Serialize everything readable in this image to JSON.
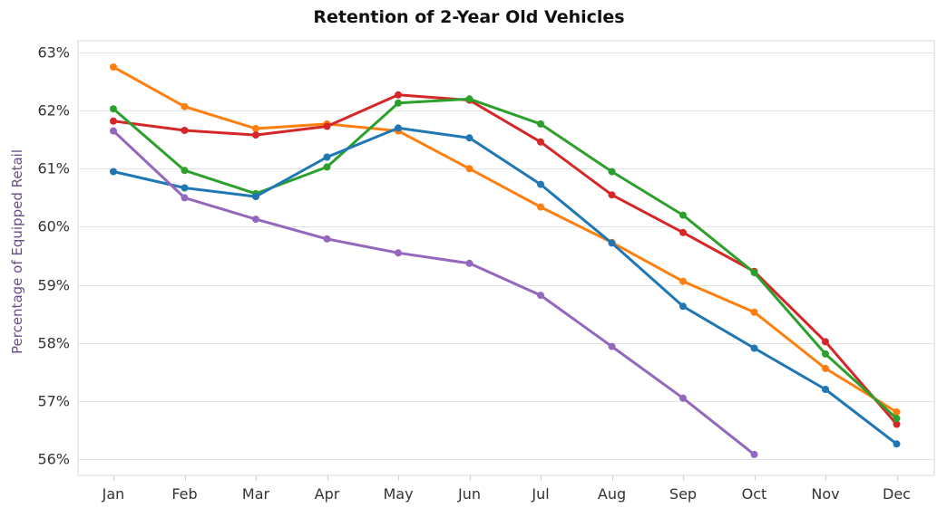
{
  "chart_data": {
    "type": "line",
    "title": "Retention of 2-Year Old Vehicles",
    "xlabel": "",
    "ylabel": "Percentage of Equipped Retail",
    "categories": [
      "Jan",
      "Feb",
      "Mar",
      "Apr",
      "May",
      "Jun",
      "Jul",
      "Aug",
      "Sep",
      "Oct",
      "Nov",
      "Dec"
    ],
    "ylim": [
      55.8,
      63.2
    ],
    "yticks": [
      56,
      57,
      58,
      59,
      60,
      61,
      62,
      63
    ],
    "ytick_labels": [
      "56%",
      "57%",
      "58%",
      "59%",
      "60%",
      "61%",
      "62%",
      "63%"
    ],
    "grid": true,
    "legend": "none",
    "series": [
      {
        "color": "#ff7f0e",
        "values": [
          62.75,
          62.07,
          61.69,
          61.77,
          61.65,
          61.0,
          60.34,
          59.73,
          59.06,
          58.53,
          57.56,
          56.81
        ]
      },
      {
        "color": "#d62728",
        "values": [
          61.82,
          61.66,
          61.58,
          61.73,
          62.27,
          62.18,
          61.46,
          60.55,
          59.9,
          59.23,
          58.02,
          56.6
        ]
      },
      {
        "color": "#2ca02c",
        "values": [
          62.03,
          60.97,
          60.57,
          61.03,
          62.13,
          62.2,
          61.77,
          60.95,
          60.2,
          59.21,
          57.81,
          56.7
        ]
      },
      {
        "color": "#1f77b4",
        "values": [
          60.95,
          60.67,
          60.52,
          61.2,
          61.7,
          61.53,
          60.73,
          59.72,
          58.63,
          57.91,
          57.2,
          56.26
        ]
      },
      {
        "color": "#9467bd",
        "values": [
          61.65,
          60.5,
          60.13,
          59.79,
          59.55,
          59.37,
          58.82,
          57.94,
          57.05,
          56.08,
          null,
          null
        ]
      }
    ]
  }
}
